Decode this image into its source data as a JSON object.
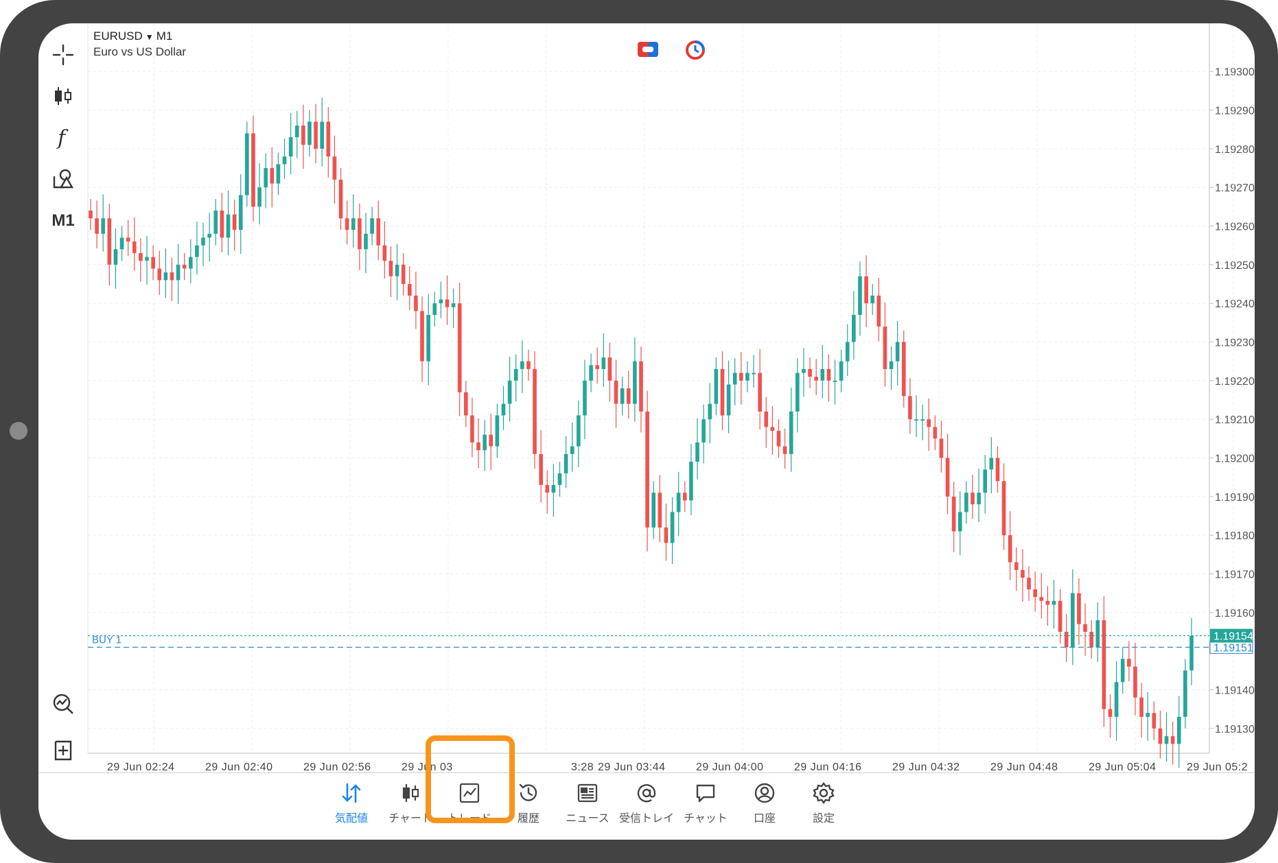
{
  "symbol": {
    "name": "EURUSD",
    "timeframe": "M1",
    "description": "Euro vs US Dollar"
  },
  "toolbar": {
    "timeframe_label": "M1"
  },
  "chart_data": {
    "type": "candlestick",
    "price_axis": {
      "min": 1.1912,
      "max": 1.193,
      "labels": [
        "1.19300",
        "1.19290",
        "1.19280",
        "1.19270",
        "1.19260",
        "1.19250",
        "1.19240",
        "1.19230",
        "1.19220",
        "1.19210",
        "1.19200",
        "1.19190",
        "1.19180",
        "1.19170",
        "1.19160",
        "1.19140",
        "1.19130"
      ]
    },
    "time_labels": [
      "29 Jun 02:24",
      "29 Jun 02:40",
      "29 Jun 02:56",
      "29 Jun 03",
      "3:28",
      "29 Jun 03:44",
      "29 Jun 04:00",
      "29 Jun 04:16",
      "29 Jun 04:32",
      "29 Jun 04:48",
      "29 Jun 05:04",
      "29 Jun 05:2"
    ],
    "grid": true,
    "bid_line": {
      "price": 1.19154,
      "label": "1.19154",
      "color": "#26a69a"
    },
    "order_line": {
      "price": 1.19151,
      "label": "1.19151",
      "tag": "BUY 1",
      "color": "#2a8ad4"
    },
    "up_color": "#26a69a",
    "down_color": "#ef5350",
    "closes": [
      1.19262,
      1.19258,
      1.19262,
      1.1925,
      1.19254,
      1.19257,
      1.19256,
      1.19253,
      1.19251,
      1.19252,
      1.19249,
      1.19246,
      1.19248,
      1.19246,
      1.1925,
      1.19249,
      1.19252,
      1.19255,
      1.19257,
      1.19258,
      1.19264,
      1.19257,
      1.19263,
      1.19259,
      1.19268,
      1.19284,
      1.19265,
      1.1927,
      1.19275,
      1.19271,
      1.19276,
      1.19278,
      1.19283,
      1.19286,
      1.19281,
      1.19287,
      1.1928,
      1.19287,
      1.19278,
      1.19272,
      1.19262,
      1.19259,
      1.19262,
      1.19254,
      1.19258,
      1.19262,
      1.19255,
      1.19251,
      1.19247,
      1.1925,
      1.19245,
      1.19242,
      1.19238,
      1.19225,
      1.19237,
      1.1924,
      1.19241,
      1.19239,
      1.1924,
      1.19217,
      1.19211,
      1.19204,
      1.19202,
      1.19206,
      1.19203,
      1.19211,
      1.19214,
      1.1922,
      1.19223,
      1.19225,
      1.19223,
      1.19201,
      1.19193,
      1.19191,
      1.19193,
      1.19196,
      1.19201,
      1.19203,
      1.19211,
      1.1922,
      1.19224,
      1.19223,
      1.19226,
      1.1922,
      1.19214,
      1.19218,
      1.19214,
      1.19225,
      1.19212,
      1.19182,
      1.19191,
      1.19182,
      1.19178,
      1.19186,
      1.19191,
      1.19189,
      1.19199,
      1.19204,
      1.1921,
      1.19214,
      1.19223,
      1.19211,
      1.19219,
      1.19222,
      1.1922,
      1.19222,
      1.19222,
      1.19212,
      1.19208,
      1.19207,
      1.19203,
      1.19201,
      1.19212,
      1.19222,
      1.19223,
      1.19221,
      1.1922,
      1.19223,
      1.1922,
      1.1922,
      1.19225,
      1.1923,
      1.19237,
      1.19247,
      1.1924,
      1.19242,
      1.19234,
      1.19223,
      1.19225,
      1.1923,
      1.19216,
      1.1921,
      1.1921,
      1.1921,
      1.19208,
      1.19205,
      1.192,
      1.1919,
      1.19181,
      1.19186,
      1.19191,
      1.19188,
      1.19191,
      1.19197,
      1.192,
      1.19194,
      1.1918,
      1.19173,
      1.19171,
      1.19169,
      1.19166,
      1.19164,
      1.19163,
      1.19162,
      1.19163,
      1.19155,
      1.19151,
      1.19165,
      1.19157,
      1.19155,
      1.19151,
      1.19158,
      1.19135,
      1.19133,
      1.19142,
      1.19148,
      1.19146,
      1.19138,
      1.19133,
      1.19134,
      1.1913,
      1.19126,
      1.19128,
      1.19126,
      1.19133,
      1.19145,
      1.19154
    ],
    "opens": [
      1.19264,
      1.19262,
      1.19258,
      1.19262,
      1.1925,
      1.19254,
      1.19257,
      1.19256,
      1.19253,
      1.19251,
      1.19252,
      1.19249,
      1.19246,
      1.19248,
      1.19246,
      1.1925,
      1.19249,
      1.19252,
      1.19255,
      1.19257,
      1.19258,
      1.19264,
      1.19257,
      1.19263,
      1.19259,
      1.19268,
      1.19284,
      1.19265,
      1.1927,
      1.19275,
      1.19271,
      1.19276,
      1.19278,
      1.19283,
      1.19286,
      1.19281,
      1.19287,
      1.1928,
      1.19287,
      1.19278,
      1.19272,
      1.19262,
      1.19259,
      1.19262,
      1.19254,
      1.19258,
      1.19262,
      1.19255,
      1.19251,
      1.19247,
      1.1925,
      1.19245,
      1.19242,
      1.19238,
      1.19225,
      1.19237,
      1.1924,
      1.19241,
      1.19239,
      1.1924,
      1.19217,
      1.19211,
      1.19204,
      1.19202,
      1.19206,
      1.19203,
      1.19211,
      1.19214,
      1.1922,
      1.19223,
      1.19225,
      1.19223,
      1.19201,
      1.19193,
      1.19191,
      1.19193,
      1.19196,
      1.19201,
      1.19203,
      1.19211,
      1.1922,
      1.19224,
      1.19223,
      1.19226,
      1.1922,
      1.19214,
      1.19218,
      1.19214,
      1.19225,
      1.19212,
      1.19182,
      1.19191,
      1.19182,
      1.19178,
      1.19186,
      1.19191,
      1.19189,
      1.19199,
      1.19204,
      1.1921,
      1.19214,
      1.19223,
      1.19211,
      1.19219,
      1.19222,
      1.1922,
      1.19222,
      1.19222,
      1.19212,
      1.19208,
      1.19207,
      1.19203,
      1.19201,
      1.19212,
      1.19222,
      1.19223,
      1.19221,
      1.1922,
      1.19223,
      1.1922,
      1.1922,
      1.19225,
      1.1923,
      1.19237,
      1.19247,
      1.1924,
      1.19242,
      1.19234,
      1.19223,
      1.19225,
      1.1923,
      1.19216,
      1.1921,
      1.1921,
      1.1921,
      1.19208,
      1.19205,
      1.192,
      1.1919,
      1.19181,
      1.19186,
      1.19191,
      1.19188,
      1.19191,
      1.19197,
      1.192,
      1.19194,
      1.1918,
      1.19173,
      1.19171,
      1.19169,
      1.19166,
      1.19164,
      1.19163,
      1.19162,
      1.19163,
      1.19155,
      1.19151,
      1.19165,
      1.19157,
      1.19155,
      1.19151,
      1.19158,
      1.19135,
      1.19133,
      1.19142,
      1.19148,
      1.19146,
      1.19138,
      1.19133,
      1.19134,
      1.1913,
      1.19126,
      1.19128,
      1.19126,
      1.19133,
      1.19145
    ]
  },
  "tabs": [
    {
      "label": "気配値",
      "icon": "quotes-icon",
      "active": true
    },
    {
      "label": "チャート",
      "icon": "chart-icon",
      "active": false
    },
    {
      "label": "トレード",
      "icon": "trade-icon",
      "active": false
    },
    {
      "label": "履歴",
      "icon": "history-icon",
      "active": false
    },
    {
      "label": "ニュース",
      "icon": "news-icon",
      "active": false
    },
    {
      "label": "受信トレイ",
      "icon": "mailbox-icon",
      "active": false
    },
    {
      "label": "チャット",
      "icon": "chat-icon",
      "active": false
    },
    {
      "label": "口座",
      "icon": "account-icon",
      "active": false
    },
    {
      "label": "設定",
      "icon": "settings-icon",
      "active": false
    }
  ],
  "colors": {
    "accent": "#1a84e8",
    "highlight": "#f7941d"
  }
}
